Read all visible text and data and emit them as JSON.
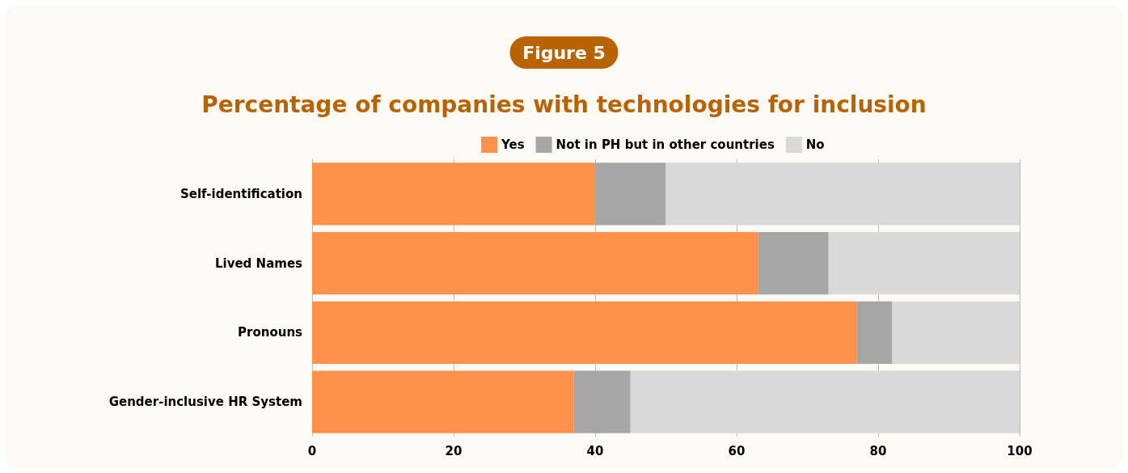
{
  "chart_data": {
    "type": "bar",
    "orientation": "horizontal",
    "stacked": true,
    "title": "Percentage of companies with technologies for inclusion",
    "annotations": [
      "Figure 5"
    ],
    "categories": [
      "Self-identification",
      "Lived Names",
      "Pronouns",
      "Gender-inclusive HR System"
    ],
    "series": [
      {
        "name": "Yes",
        "color": "#ff914d",
        "values": [
          40,
          63,
          77,
          37
        ]
      },
      {
        "name": "Not in PH but in other countries",
        "color": "#a6a6a6",
        "values": [
          10,
          10,
          5,
          8
        ]
      },
      {
        "name": "No",
        "color": "#d9d9d9",
        "values": [
          50,
          27,
          18,
          55
        ]
      }
    ],
    "xlim": [
      0,
      100
    ],
    "xticks": [
      0,
      20,
      40,
      60,
      80,
      100
    ],
    "grid": "x",
    "legend": "top"
  }
}
